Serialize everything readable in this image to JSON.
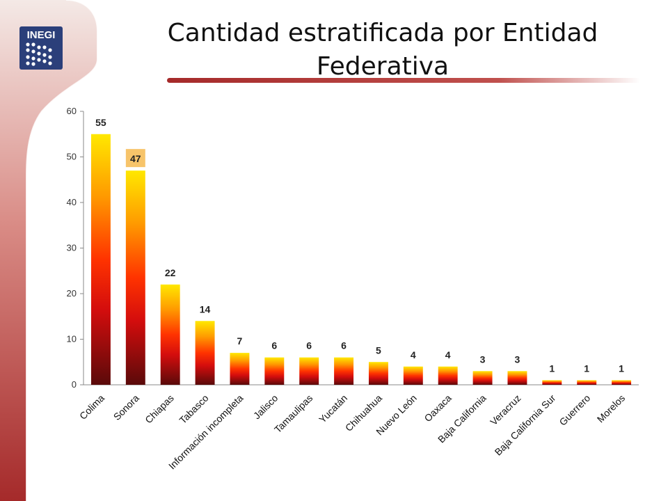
{
  "slide": {
    "logo_text": "INEGI",
    "title": "Cantidad estratificada por Entidad Federativa",
    "colors": {
      "frame_red": "#b23a3a",
      "logo_blue": "#2b3f7a",
      "bar_top": "#ffe800",
      "bar_mid": "#ff1a00",
      "bar_bottom": "#5a0a0a",
      "highlight_label_bg": "#f7c46a"
    }
  },
  "chart_data": {
    "type": "bar",
    "title": "Cantidad estratificada por Entidad Federativa",
    "xlabel": "",
    "ylabel": "",
    "ylim": [
      0,
      60
    ],
    "yticks": [
      0,
      10,
      20,
      30,
      40,
      50,
      60
    ],
    "grid": false,
    "legend": "none",
    "categories": [
      "Colima",
      "Sonora",
      "Chiapas",
      "Tabasco",
      "Información incompleta",
      "Jalisco",
      "Tamaulipas",
      "Yucatán",
      "Chihuahua",
      "Nuevo León",
      "Oaxaca",
      "Baja California",
      "Veracruz",
      "Baja California Sur",
      "Guerrero",
      "Morelos"
    ],
    "values": [
      55,
      47,
      22,
      14,
      7,
      6,
      6,
      6,
      5,
      4,
      4,
      3,
      3,
      1,
      1,
      1
    ],
    "highlighted_category": "Sonora"
  }
}
